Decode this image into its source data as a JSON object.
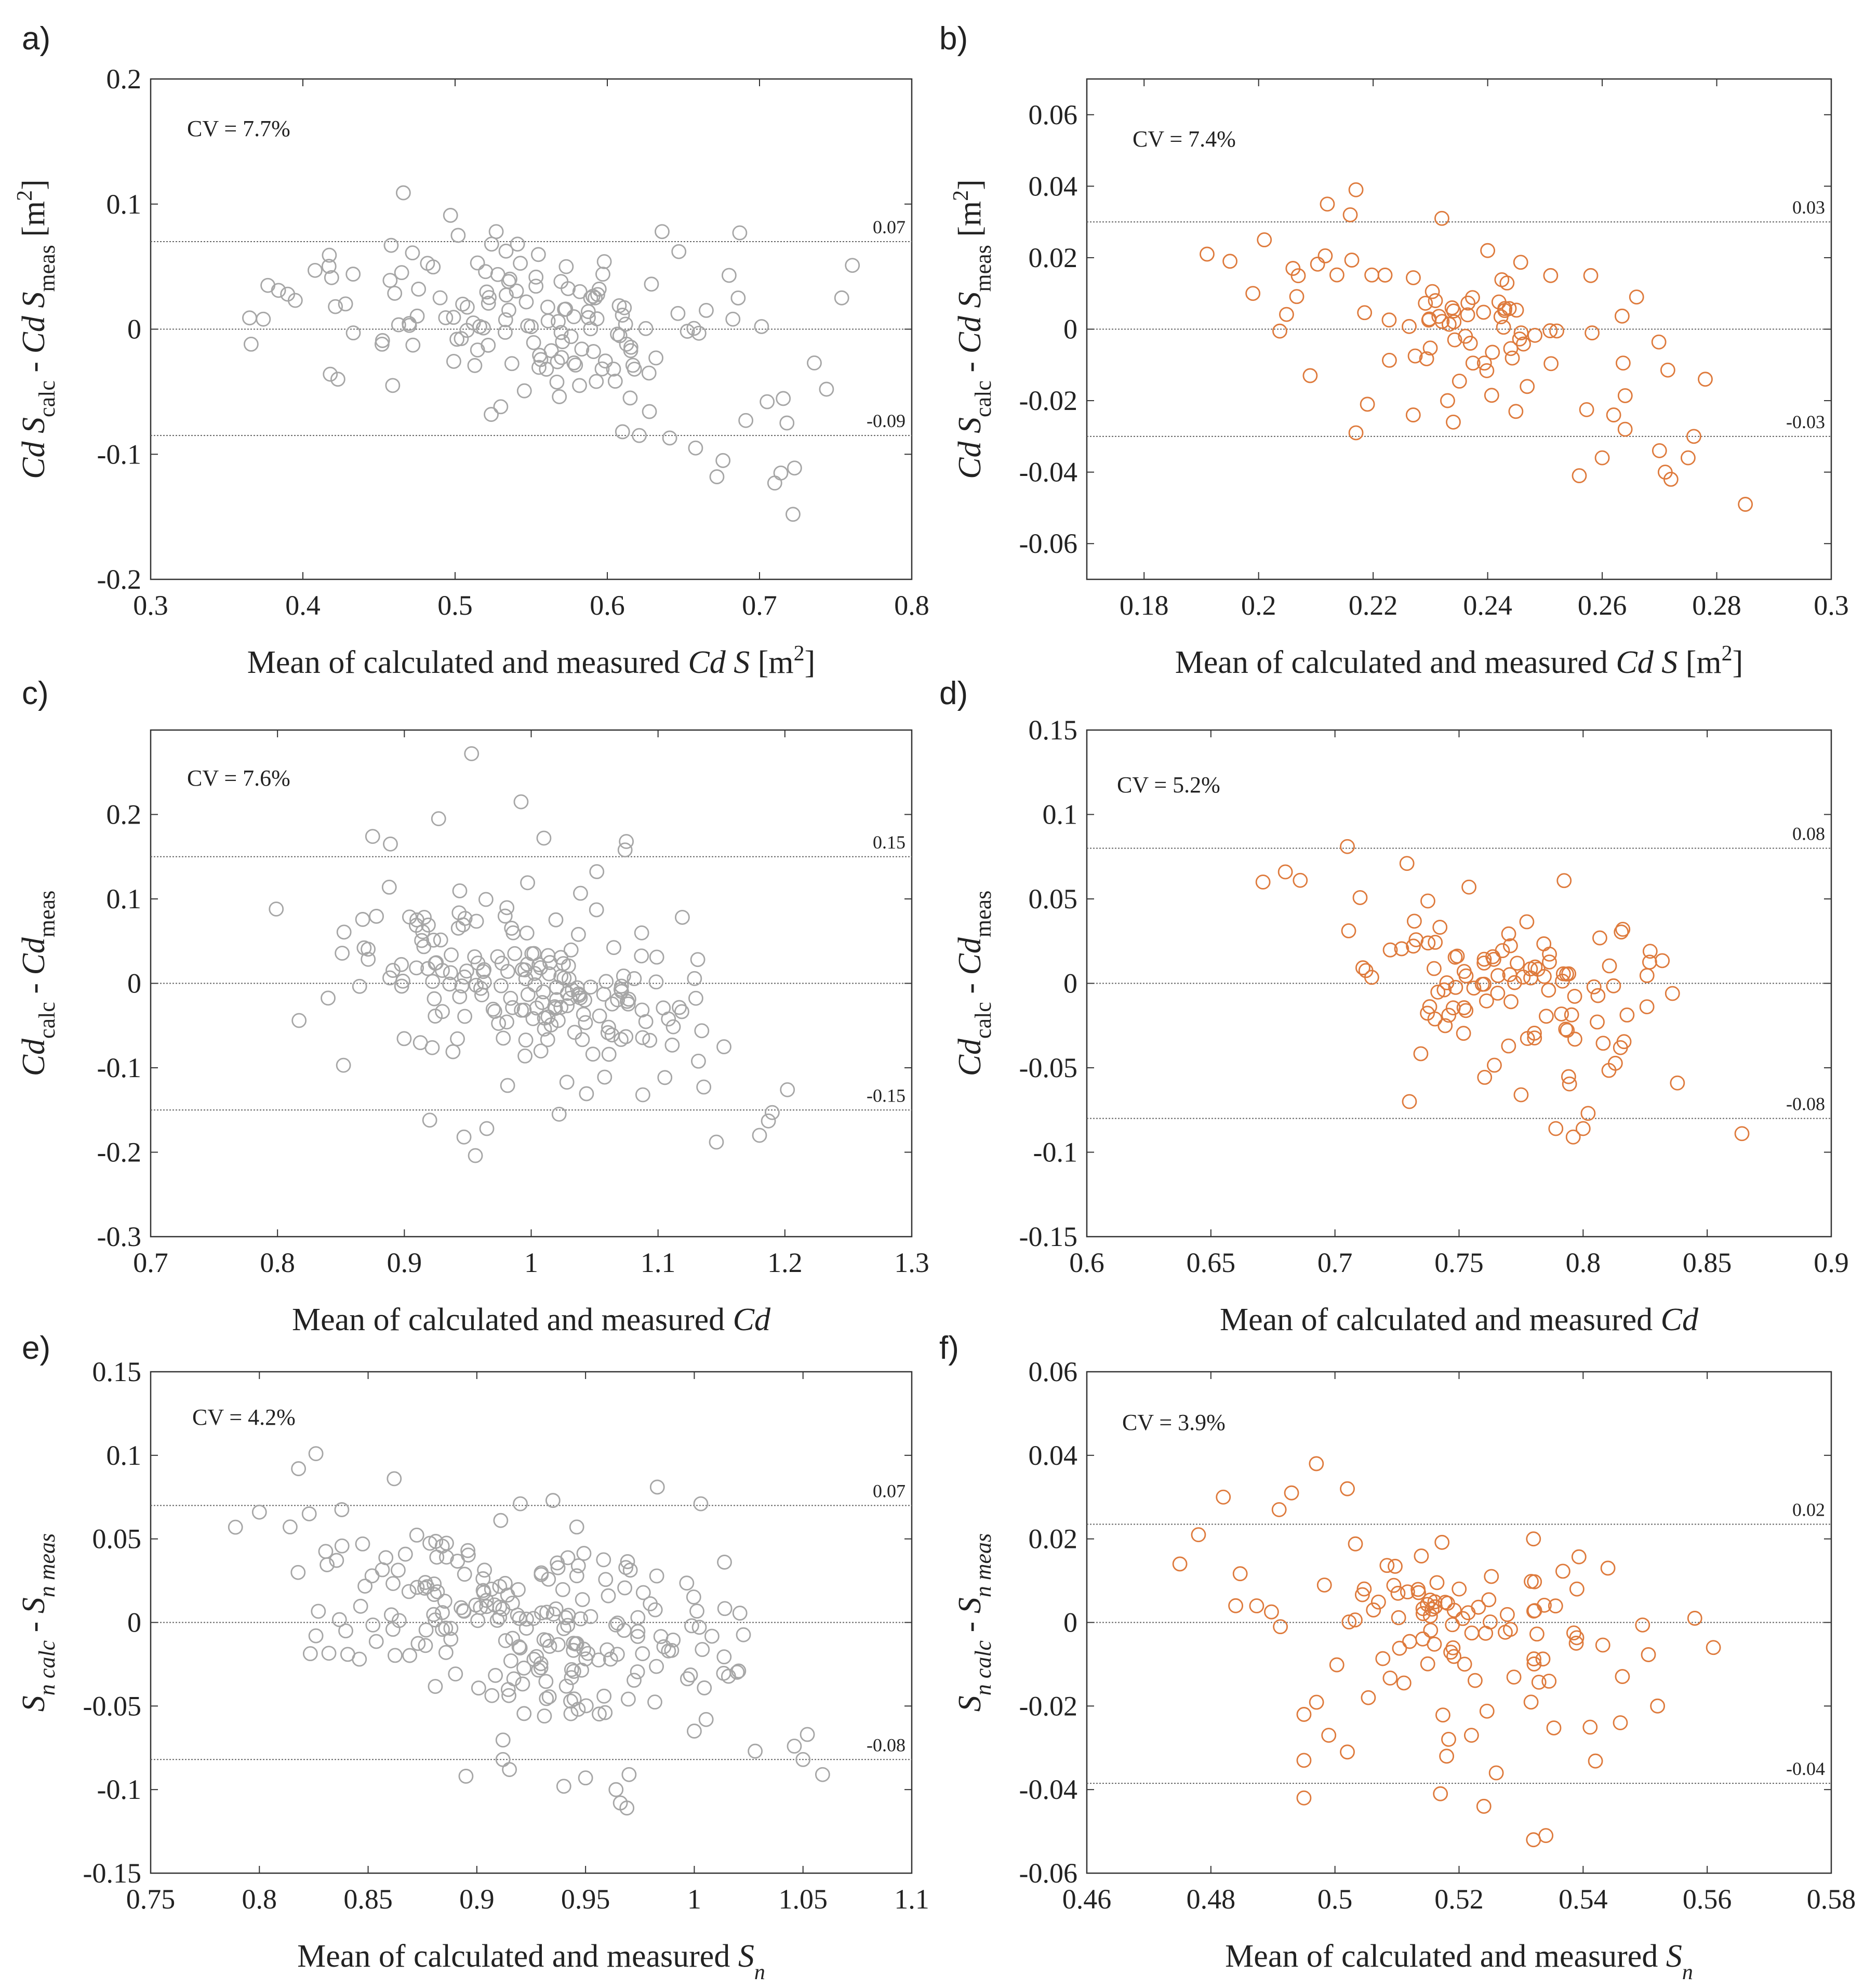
{
  "colors": {
    "gray": "#a6a6a6",
    "orange": "#de7a3c",
    "axis": "#333333",
    "line": "#666666"
  },
  "chart_data": [
    {
      "panel": "a)",
      "type": "scatter",
      "color": "#a6a6a6",
      "cv": "CV = 7.7%",
      "xlim": [
        0.3,
        0.8
      ],
      "ylim": [
        -0.2,
        0.2
      ],
      "xticks": [
        "0.3",
        "0.4",
        "0.5",
        "0.6",
        "0.7",
        "0.8"
      ],
      "yticks": [
        "-0.2",
        "-0.1",
        "0",
        "0.1",
        "0.2"
      ],
      "ref_lines": [
        {
          "y": 0.07,
          "label": "0.07"
        },
        {
          "y": 0,
          "label": ""
        },
        {
          "y": -0.085,
          "label": "-0.09"
        }
      ],
      "xlabel": {
        "main": "Mean of calculated and measured ",
        "var1": "Cd S",
        "unit": " [m",
        "sup": "2",
        "close": "]"
      },
      "ylabel": {
        "a": "Cd S",
        "a_sub": "calc",
        "mid": " - ",
        "b": "Cd S",
        "b_sub": "meas",
        "unit": " [m",
        "sup": "2",
        "close": "]"
      },
      "seed": 11,
      "n_points": 170,
      "points": [
        [
          0.365,
          0.009
        ],
        [
          0.366,
          -0.012
        ],
        [
          0.374,
          0.008
        ],
        [
          0.377,
          0.035
        ],
        [
          0.384,
          0.031
        ],
        [
          0.39,
          0.028
        ],
        [
          0.395,
          0.023
        ],
        [
          0.408,
          0.047
        ],
        [
          0.418,
          -0.036
        ],
        [
          0.423,
          -0.04
        ],
        [
          0.433,
          0.044
        ],
        [
          0.452,
          -0.012
        ],
        [
          0.458,
          0.067
        ],
        [
          0.459,
          -0.045
        ],
        [
          0.466,
          0.109
        ],
        [
          0.47,
          0.003
        ],
        [
          0.472,
          0.061
        ],
        [
          0.476,
          0.032
        ],
        [
          0.497,
          0.091
        ],
        [
          0.502,
          0.075
        ],
        [
          0.505,
          0.02
        ],
        [
          0.512,
          0.005
        ],
        [
          0.52,
          0.046
        ],
        [
          0.524,
          0.068
        ],
        [
          0.527,
          0.078
        ],
        [
          0.53,
          -0.062
        ],
        [
          0.536,
          0.04
        ],
        [
          0.541,
          0.068
        ],
        [
          0.55,
          0.002
        ],
        [
          0.56,
          -0.032
        ],
        [
          0.573,
          0.05
        ],
        [
          0.582,
          0.03
        ],
        [
          0.592,
          0.025
        ],
        [
          0.598,
          0.054
        ],
        [
          0.61,
          -0.082
        ],
        [
          0.612,
          0.004
        ],
        [
          0.615,
          -0.055
        ],
        [
          0.621,
          -0.085
        ],
        [
          0.629,
          0.036
        ],
        [
          0.636,
          0.078
        ],
        [
          0.641,
          -0.087
        ],
        [
          0.647,
          0.062
        ],
        [
          0.658,
          -0.095
        ],
        [
          0.665,
          0.015
        ],
        [
          0.672,
          -0.118
        ],
        [
          0.676,
          -0.105
        ],
        [
          0.68,
          0.043
        ],
        [
          0.687,
          0.077
        ],
        [
          0.691,
          -0.073
        ],
        [
          0.705,
          -0.058
        ],
        [
          0.71,
          -0.123
        ],
        [
          0.714,
          -0.115
        ],
        [
          0.718,
          -0.075
        ],
        [
          0.722,
          -0.148
        ],
        [
          0.723,
          -0.111
        ],
        [
          0.736,
          -0.027
        ],
        [
          0.744,
          -0.048
        ],
        [
          0.754,
          0.025
        ],
        [
          0.761,
          0.051
        ]
      ]
    },
    {
      "panel": "b)",
      "type": "scatter",
      "color": "#de7a3c",
      "cv": "CV = 7.4%",
      "xlim": [
        0.17,
        0.3
      ],
      "ylim": [
        -0.07,
        0.07
      ],
      "xticks": [
        "0.18",
        "0.2",
        "0.22",
        "0.24",
        "0.26",
        "0.28",
        "0.3"
      ],
      "yticks": [
        "-0.06",
        "-0.04",
        "-0.02",
        "0",
        "0.02",
        "0.04",
        "0.06"
      ],
      "ref_lines": [
        {
          "y": 0.03,
          "label": "0.03"
        },
        {
          "y": 0,
          "label": ""
        },
        {
          "y": -0.03,
          "label": "-0.03"
        }
      ],
      "xlabel": {
        "main": "Mean of calculated and measured ",
        "var1": "Cd S",
        "unit": " [m",
        "sup": "2",
        "close": "]"
      },
      "ylabel": {
        "a": "Cd S",
        "a_sub": "calc",
        "mid": " - ",
        "b": "Cd S",
        "b_sub": "meas",
        "unit": " [m",
        "sup": "2",
        "close": "]"
      },
      "seed": 23,
      "n_points": 100,
      "points": [
        [
          0.191,
          0.021
        ],
        [
          0.195,
          0.019
        ],
        [
          0.199,
          0.01
        ],
        [
          0.201,
          0.025
        ],
        [
          0.206,
          0.017
        ],
        [
          0.209,
          -0.013
        ],
        [
          0.212,
          0.035
        ],
        [
          0.216,
          0.032
        ],
        [
          0.217,
          0.039
        ],
        [
          0.217,
          -0.029
        ],
        [
          0.219,
          -0.021
        ],
        [
          0.227,
          -0.024
        ],
        [
          0.232,
          0.031
        ],
        [
          0.233,
          -0.02
        ],
        [
          0.234,
          -0.026
        ],
        [
          0.24,
          0.022
        ],
        [
          0.251,
          0.015
        ],
        [
          0.256,
          -0.041
        ],
        [
          0.258,
          0.015
        ],
        [
          0.26,
          -0.036
        ],
        [
          0.262,
          -0.024
        ],
        [
          0.264,
          -0.028
        ],
        [
          0.266,
          0.009
        ],
        [
          0.27,
          -0.034
        ],
        [
          0.271,
          -0.04
        ],
        [
          0.272,
          -0.042
        ],
        [
          0.275,
          -0.036
        ],
        [
          0.276,
          -0.03
        ],
        [
          0.278,
          -0.014
        ],
        [
          0.285,
          -0.049
        ]
      ]
    },
    {
      "panel": "c)",
      "type": "scatter",
      "color": "#a6a6a6",
      "cv": "CV = 7.6%",
      "xlim": [
        0.7,
        1.3
      ],
      "ylim": [
        -0.3,
        0.3
      ],
      "xticks": [
        "0.7",
        "0.8",
        "0.9",
        "1",
        "1.1",
        "1.2",
        "1.3"
      ],
      "yticks": [
        "-0.3",
        "-0.2",
        "-0.1",
        "0",
        "0.1",
        "0.2"
      ],
      "ref_lines": [
        {
          "y": 0.15,
          "label": "0.15"
        },
        {
          "y": 0,
          "label": ""
        },
        {
          "y": -0.15,
          "label": "-0.15"
        }
      ],
      "xlabel": {
        "main": "Mean of calculated and measured ",
        "var1": "Cd",
        "unit": "",
        "sup": "",
        "close": ""
      },
      "ylabel": {
        "a": "Cd",
        "a_sub": "calc",
        "mid": " - ",
        "b": "Cd",
        "b_sub": "meas",
        "unit": "",
        "sup": "",
        "close": ""
      },
      "seed": 37,
      "n_points": 210,
      "points": [
        [
          0.799,
          0.088
        ],
        [
          0.817,
          -0.044
        ],
        [
          0.852,
          -0.097
        ],
        [
          0.875,
          0.174
        ],
        [
          0.889,
          0.165
        ],
        [
          0.92,
          -0.162
        ],
        [
          0.927,
          0.195
        ],
        [
          0.947,
          -0.182
        ],
        [
          0.953,
          0.272
        ],
        [
          0.956,
          -0.204
        ],
        [
          0.965,
          -0.172
        ],
        [
          0.992,
          0.215
        ],
        [
          1.01,
          0.172
        ],
        [
          1.022,
          -0.155
        ],
        [
          1.074,
          0.158
        ],
        [
          1.075,
          0.168
        ],
        [
          1.088,
          -0.132
        ],
        [
          1.146,
          -0.188
        ],
        [
          1.18,
          -0.18
        ],
        [
          1.187,
          -0.163
        ],
        [
          1.19,
          -0.153
        ],
        [
          1.202,
          -0.126
        ]
      ]
    },
    {
      "panel": "d)",
      "type": "scatter",
      "color": "#de7a3c",
      "cv": "CV = 5.2%",
      "xlim": [
        0.6,
        0.9
      ],
      "ylim": [
        -0.15,
        0.15
      ],
      "xticks": [
        "0.6",
        "0.65",
        "0.7",
        "0.75",
        "0.8",
        "0.85",
        "0.9"
      ],
      "yticks": [
        "-0.15",
        "-0.1",
        "-0.05",
        "0",
        "0.05",
        "0.1",
        "0.15"
      ],
      "ref_lines": [
        {
          "y": 0.08,
          "label": "0.08"
        },
        {
          "y": 0,
          "label": ""
        },
        {
          "y": -0.08,
          "label": "-0.08"
        }
      ],
      "xlabel": {
        "main": "Mean of calculated and measured ",
        "var1": "Cd",
        "unit": "",
        "sup": "",
        "close": ""
      },
      "ylabel": {
        "a": "Cd",
        "a_sub": "calc",
        "mid": " - ",
        "b": "Cd",
        "b_sub": "meas",
        "unit": "",
        "sup": "",
        "close": ""
      },
      "seed": 41,
      "n_points": 115,
      "points": [
        [
          0.671,
          0.06
        ],
        [
          0.68,
          0.066
        ],
        [
          0.686,
          0.061
        ],
        [
          0.705,
          0.081
        ],
        [
          0.729,
          0.071
        ],
        [
          0.73,
          -0.07
        ],
        [
          0.754,
          0.057
        ],
        [
          0.775,
          -0.066
        ],
        [
          0.789,
          -0.086
        ],
        [
          0.796,
          -0.091
        ],
        [
          0.8,
          -0.086
        ],
        [
          0.802,
          -0.077
        ],
        [
          0.816,
          0.032
        ],
        [
          0.827,
          0.019
        ],
        [
          0.836,
          -0.006
        ],
        [
          0.838,
          -0.059
        ],
        [
          0.864,
          -0.089
        ]
      ]
    },
    {
      "panel": "e)",
      "type": "scatter",
      "color": "#a6a6a6",
      "cv": "CV = 4.2%",
      "xlim": [
        0.75,
        1.1
      ],
      "ylim": [
        -0.15,
        0.15
      ],
      "xticks": [
        "0.75",
        "0.8",
        "0.85",
        "0.9",
        "0.95",
        "1",
        "1.05",
        "1.1"
      ],
      "yticks": [
        "-0.15",
        "-0.1",
        "-0.05",
        "0",
        "0.05",
        "0.1",
        "0.15"
      ],
      "ref_lines": [
        {
          "y": 0.07,
          "label": "0.07"
        },
        {
          "y": 0,
          "label": ""
        },
        {
          "y": -0.082,
          "label": "-0.08"
        }
      ],
      "xlabel": {
        "main": "Mean of calculated and measured ",
        "var1": "S",
        "var1_sub": "n",
        "unit": "",
        "sup": "",
        "close": ""
      },
      "ylabel": {
        "a": "S",
        "a_sub": "n calc",
        "mid": " - ",
        "b": "S",
        "b_sub": "n meas",
        "unit": "",
        "sup": "",
        "close": ""
      },
      "seed": 53,
      "n_points": 240,
      "points": [
        [
          0.789,
          0.057
        ],
        [
          0.8,
          0.066
        ],
        [
          0.818,
          0.092
        ],
        [
          0.826,
          0.101
        ],
        [
          0.826,
          -0.008
        ],
        [
          0.862,
          0.086
        ],
        [
          0.895,
          -0.092
        ],
        [
          0.912,
          -0.082
        ],
        [
          0.915,
          -0.088
        ],
        [
          0.92,
          0.071
        ],
        [
          0.935,
          0.073
        ],
        [
          0.94,
          -0.098
        ],
        [
          0.95,
          -0.093
        ],
        [
          0.964,
          -0.1
        ],
        [
          0.966,
          -0.108
        ],
        [
          0.969,
          -0.111
        ],
        [
          0.97,
          -0.091
        ],
        [
          0.983,
          0.081
        ],
        [
          1.0,
          -0.065
        ],
        [
          1.003,
          0.071
        ],
        [
          1.028,
          -0.077
        ],
        [
          1.046,
          -0.074
        ],
        [
          1.05,
          -0.082
        ],
        [
          1.052,
          -0.067
        ],
        [
          1.059,
          -0.091
        ]
      ]
    },
    {
      "panel": "f)",
      "type": "scatter",
      "color": "#de7a3c",
      "cv": "CV = 3.9%",
      "xlim": [
        0.46,
        0.58
      ],
      "ylim": [
        -0.06,
        0.06
      ],
      "xticks": [
        "0.46",
        "0.48",
        "0.5",
        "0.52",
        "0.54",
        "0.56",
        "0.58"
      ],
      "yticks": [
        "-0.06",
        "-0.04",
        "-0.02",
        "0",
        "0.02",
        "0.04",
        "0.06"
      ],
      "ref_lines": [
        {
          "y": 0.0235,
          "label": "0.02"
        },
        {
          "y": 0,
          "label": ""
        },
        {
          "y": -0.0385,
          "label": "-0.04"
        }
      ],
      "xlabel": {
        "main": "Mean of calculated and measured ",
        "var1": "S",
        "var1_sub": "n",
        "unit": "",
        "sup": "",
        "close": ""
      },
      "ylabel": {
        "a": "S",
        "a_sub": "n calc",
        "mid": " - ",
        "b": "S",
        "b_sub": "n meas",
        "unit": "",
        "sup": "",
        "close": ""
      },
      "seed": 67,
      "n_points": 120,
      "points": [
        [
          0.475,
          0.014
        ],
        [
          0.478,
          0.021
        ],
        [
          0.482,
          0.03
        ],
        [
          0.484,
          0.004
        ],
        [
          0.491,
          0.027
        ],
        [
          0.493,
          0.031
        ],
        [
          0.495,
          -0.022
        ],
        [
          0.495,
          -0.033
        ],
        [
          0.495,
          -0.042
        ],
        [
          0.497,
          0.038
        ],
        [
          0.499,
          -0.027
        ],
        [
          0.502,
          0.032
        ],
        [
          0.502,
          -0.031
        ],
        [
          0.517,
          -0.041
        ],
        [
          0.518,
          -0.032
        ],
        [
          0.522,
          -0.027
        ],
        [
          0.524,
          -0.044
        ],
        [
          0.526,
          -0.036
        ],
        [
          0.532,
          0.02
        ],
        [
          0.532,
          -0.052
        ],
        [
          0.534,
          -0.051
        ],
        [
          0.539,
          0.008
        ],
        [
          0.544,
          0.013
        ],
        [
          0.546,
          -0.024
        ],
        [
          0.552,
          -0.02
        ],
        [
          0.558,
          0.001
        ],
        [
          0.561,
          -0.006
        ]
      ]
    }
  ]
}
